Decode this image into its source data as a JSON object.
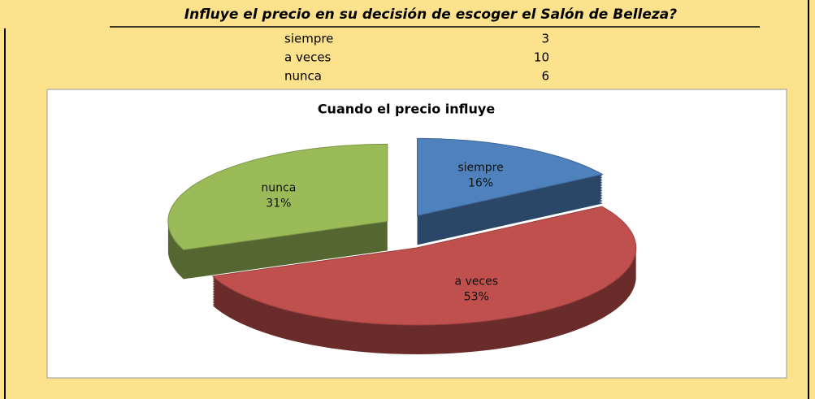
{
  "table": {
    "title": "Influye el precio en su decisión de escoger el Salón de Belleza?",
    "rows": [
      [
        "siempre",
        3
      ],
      [
        "a veces",
        10
      ],
      [
        "nunca",
        6
      ]
    ]
  },
  "chart_data": {
    "type": "pie",
    "title": "Cuando el precio influye",
    "categories": [
      "siempre",
      "a veces",
      "nunca"
    ],
    "values": [
      16,
      53,
      31
    ],
    "value_labels": [
      "16%",
      "53%",
      "31%"
    ],
    "colors": [
      "#4f81bd",
      "#c0504d",
      "#9bbb59"
    ]
  }
}
